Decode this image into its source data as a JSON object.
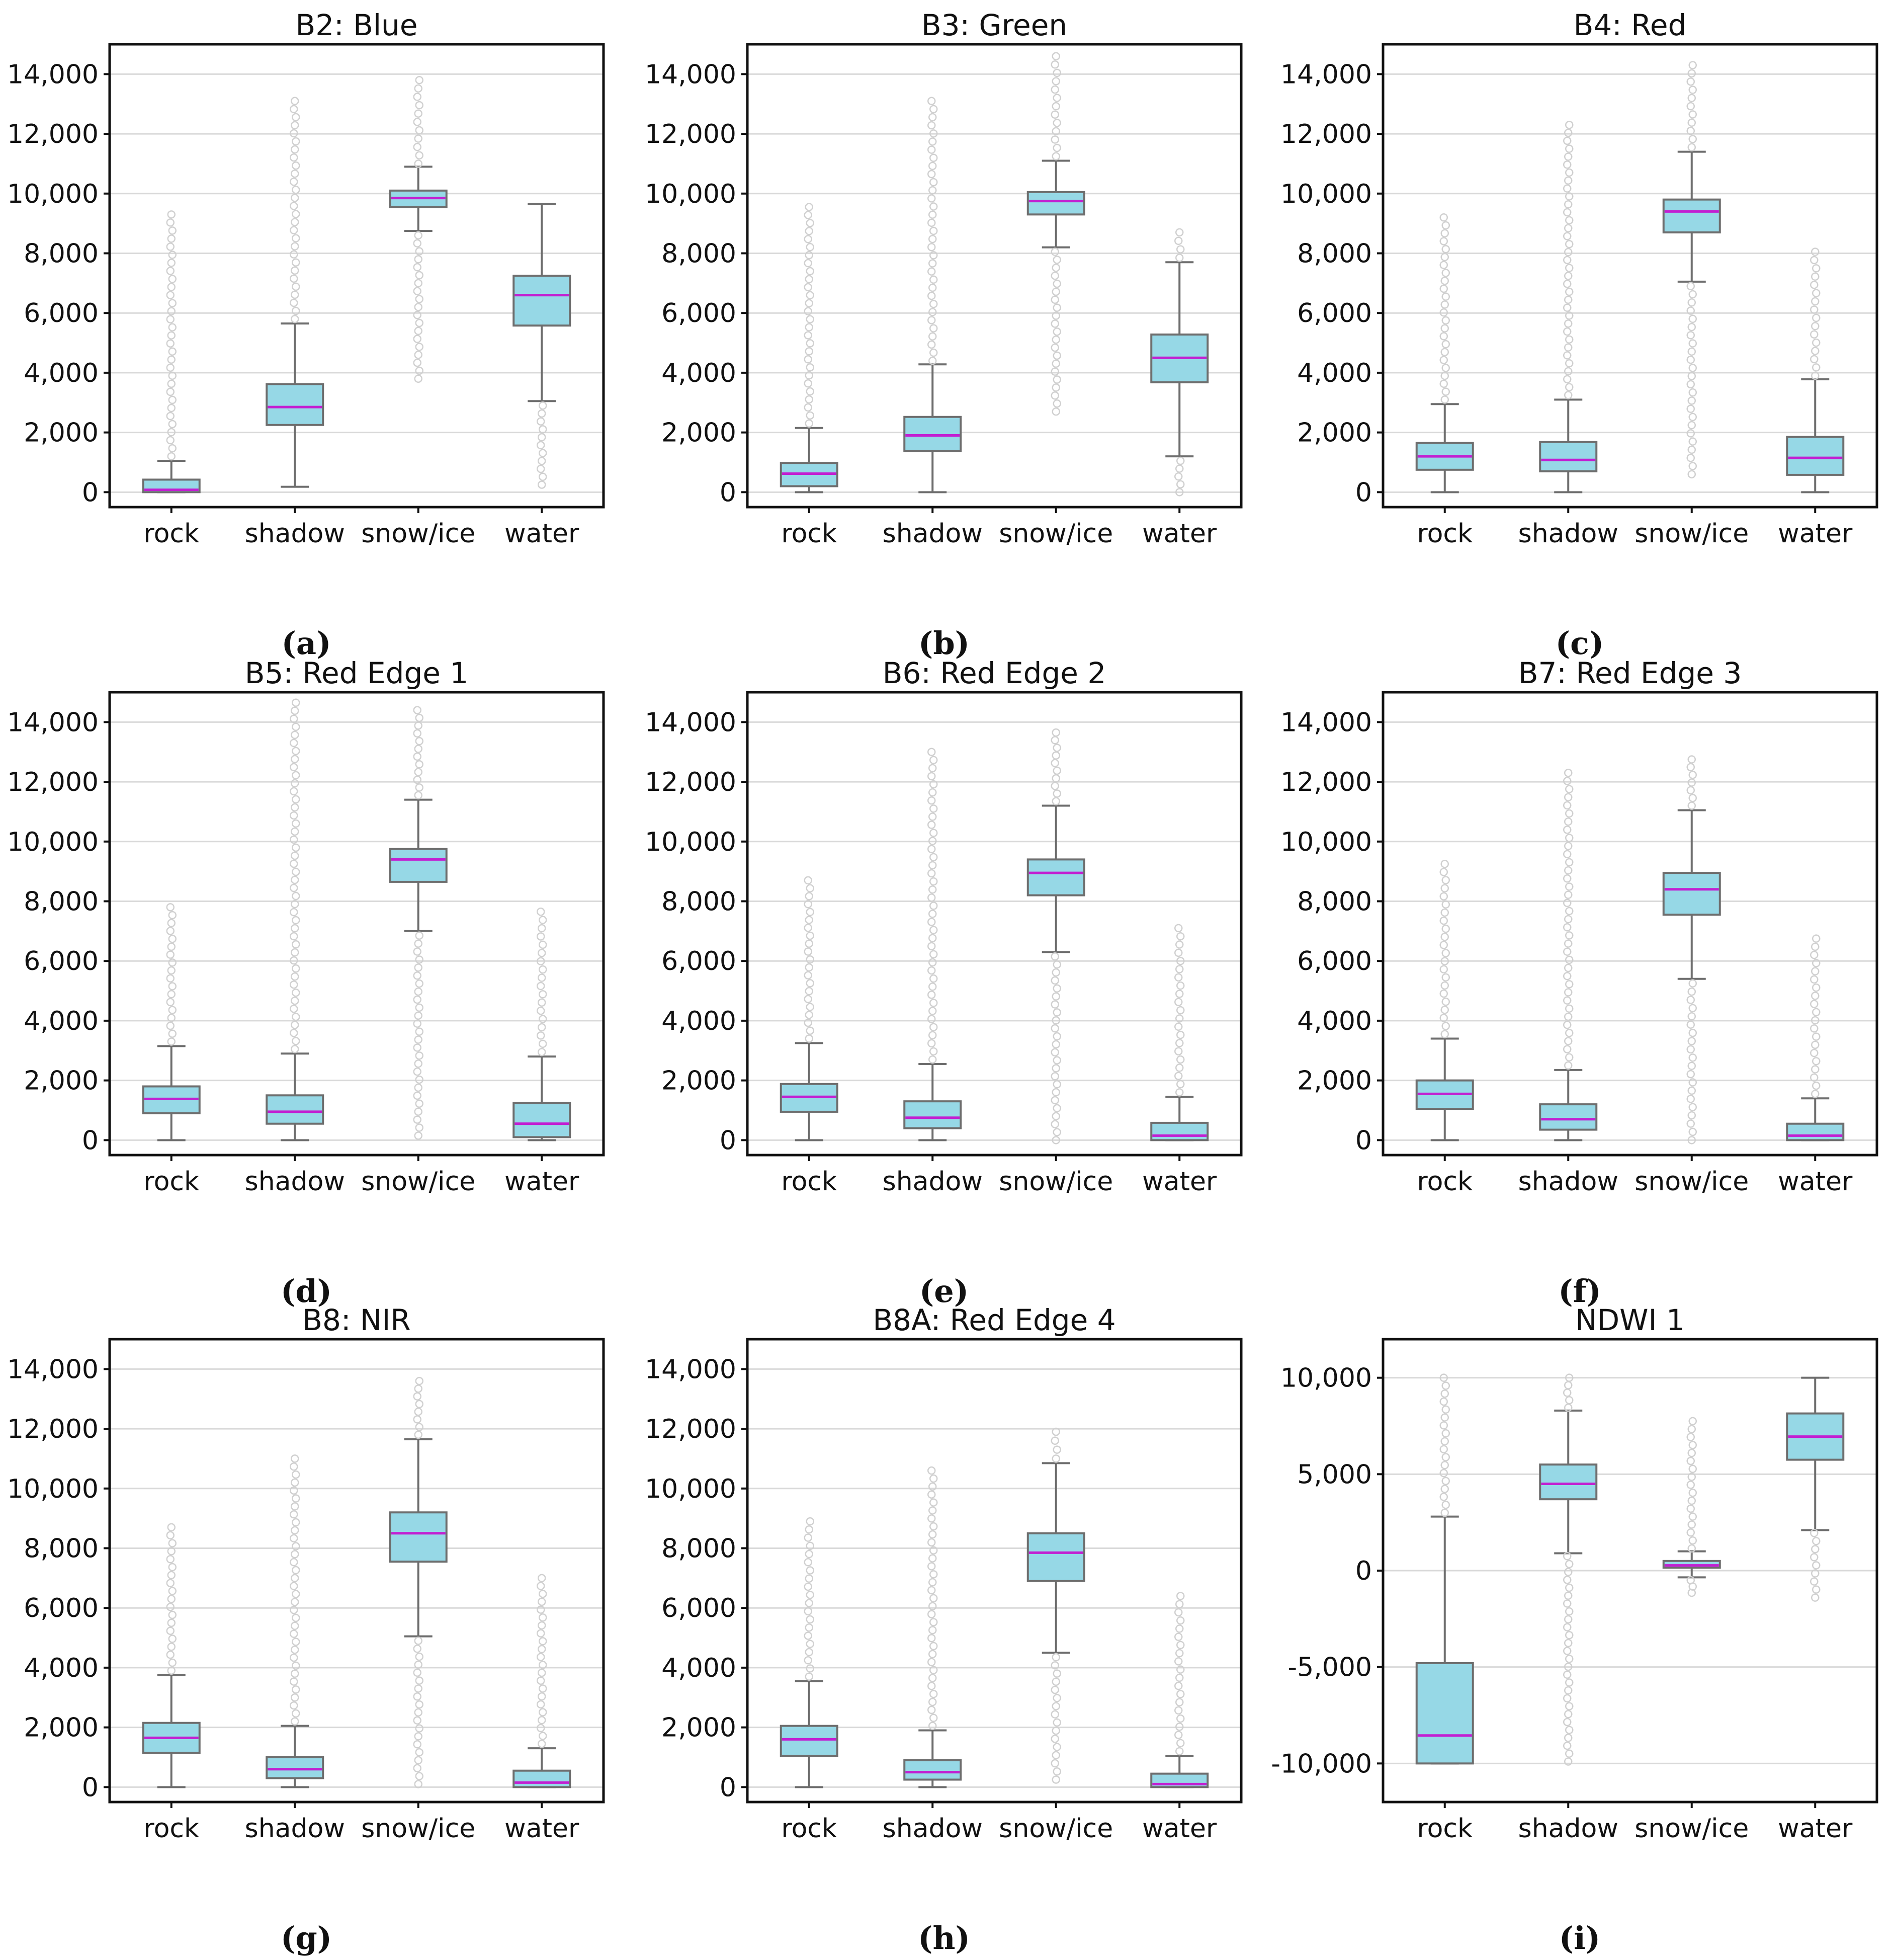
{
  "style": {
    "box_fill": "#96d8e6",
    "box_stroke": "#6e6e6e",
    "median_color": "#c21fd1",
    "grid_color": "#d9d9d9",
    "outlier_color": "#d0d0d0",
    "frame_color": "#111111"
  },
  "chart_data": [
    {
      "type": "box",
      "caption": "(a)",
      "title": "B2: Blue",
      "categories": [
        "rock",
        "shadow",
        "snow/ice",
        "water"
      ],
      "ylim": [
        -500,
        15000
      ],
      "yticks": [
        0,
        2000,
        4000,
        6000,
        8000,
        10000,
        12000,
        14000
      ],
      "yticklabels": [
        "0",
        "2,000",
        "4,000",
        "6,000",
        "8,000",
        "10,000",
        "12,000",
        "14,000"
      ],
      "boxes": [
        {
          "category": "rock",
          "whisker_low": 0,
          "q1": 0,
          "median": 80,
          "q3": 420,
          "whisker_high": 1050,
          "fliers_low": [],
          "fliers_high": [
            1200,
            9300
          ]
        },
        {
          "category": "shadow",
          "whisker_low": 180,
          "q1": 2250,
          "median": 2850,
          "q3": 3620,
          "whisker_high": 5650,
          "fliers_low": [],
          "fliers_high": [
            5800,
            13100
          ]
        },
        {
          "category": "snow/ice",
          "whisker_low": 8750,
          "q1": 9550,
          "median": 9850,
          "q3": 10100,
          "whisker_high": 10900,
          "fliers_low": [
            3800,
            8600
          ],
          "fliers_high": [
            11000,
            13800
          ]
        },
        {
          "category": "water",
          "whisker_low": 3050,
          "q1": 5580,
          "median": 6600,
          "q3": 7250,
          "whisker_high": 9650,
          "fliers_low": [
            250,
            2900
          ],
          "fliers_high": []
        }
      ]
    },
    {
      "type": "box",
      "caption": "(b)",
      "title": "B3: Green",
      "categories": [
        "rock",
        "shadow",
        "snow/ice",
        "water"
      ],
      "ylim": [
        -500,
        15000
      ],
      "yticks": [
        0,
        2000,
        4000,
        6000,
        8000,
        10000,
        12000,
        14000
      ],
      "yticklabels": [
        "0",
        "2,000",
        "4,000",
        "6,000",
        "8,000",
        "10,000",
        "12,000",
        "14,000"
      ],
      "boxes": [
        {
          "category": "rock",
          "whisker_low": 0,
          "q1": 200,
          "median": 620,
          "q3": 980,
          "whisker_high": 2150,
          "fliers_low": [],
          "fliers_high": [
            2300,
            9550
          ]
        },
        {
          "category": "shadow",
          "whisker_low": 0,
          "q1": 1380,
          "median": 1900,
          "q3": 2520,
          "whisker_high": 4280,
          "fliers_low": [],
          "fliers_high": [
            4400,
            13100
          ]
        },
        {
          "category": "snow/ice",
          "whisker_low": 8200,
          "q1": 9300,
          "median": 9750,
          "q3": 10050,
          "whisker_high": 11100,
          "fliers_low": [
            2700,
            8050
          ],
          "fliers_high": [
            11250,
            14600
          ]
        },
        {
          "category": "water",
          "whisker_low": 1200,
          "q1": 3680,
          "median": 4500,
          "q3": 5280,
          "whisker_high": 7700,
          "fliers_low": [
            0,
            1050
          ],
          "fliers_high": [
            7850,
            8700
          ]
        }
      ]
    },
    {
      "type": "box",
      "caption": "(c)",
      "title": "B4: Red",
      "categories": [
        "rock",
        "shadow",
        "snow/ice",
        "water"
      ],
      "ylim": [
        -500,
        15000
      ],
      "yticks": [
        0,
        2000,
        4000,
        6000,
        8000,
        10000,
        12000,
        14000
      ],
      "yticklabels": [
        "0",
        "2,000",
        "4,000",
        "6,000",
        "8,000",
        "10,000",
        "12,000",
        "14,000"
      ],
      "boxes": [
        {
          "category": "rock",
          "whisker_low": 0,
          "q1": 750,
          "median": 1200,
          "q3": 1650,
          "whisker_high": 2950,
          "fliers_low": [],
          "fliers_high": [
            3100,
            9200
          ]
        },
        {
          "category": "shadow",
          "whisker_low": 0,
          "q1": 700,
          "median": 1080,
          "q3": 1680,
          "whisker_high": 3100,
          "fliers_low": [],
          "fliers_high": [
            3250,
            12300
          ]
        },
        {
          "category": "snow/ice",
          "whisker_low": 7050,
          "q1": 8700,
          "median": 9400,
          "q3": 9800,
          "whisker_high": 11400,
          "fliers_low": [
            600,
            6900
          ],
          "fliers_high": [
            11550,
            14300
          ]
        },
        {
          "category": "water",
          "whisker_low": 0,
          "q1": 580,
          "median": 1150,
          "q3": 1850,
          "whisker_high": 3780,
          "fliers_low": [],
          "fliers_high": [
            3900,
            8050
          ]
        }
      ]
    },
    {
      "type": "box",
      "caption": "(d)",
      "title": "B5: Red Edge 1",
      "categories": [
        "rock",
        "shadow",
        "snow/ice",
        "water"
      ],
      "ylim": [
        -500,
        15000
      ],
      "yticks": [
        0,
        2000,
        4000,
        6000,
        8000,
        10000,
        12000,
        14000
      ],
      "yticklabels": [
        "0",
        "2,000",
        "4,000",
        "6,000",
        "8,000",
        "10,000",
        "12,000",
        "14,000"
      ],
      "boxes": [
        {
          "category": "rock",
          "whisker_low": 0,
          "q1": 900,
          "median": 1380,
          "q3": 1800,
          "whisker_high": 3150,
          "fliers_low": [],
          "fliers_high": [
            3300,
            7800
          ]
        },
        {
          "category": "shadow",
          "whisker_low": 0,
          "q1": 550,
          "median": 950,
          "q3": 1500,
          "whisker_high": 2900,
          "fliers_low": [],
          "fliers_high": [
            3050,
            14650
          ]
        },
        {
          "category": "snow/ice",
          "whisker_low": 7000,
          "q1": 8650,
          "median": 9400,
          "q3": 9750,
          "whisker_high": 11400,
          "fliers_low": [
            150,
            6850
          ],
          "fliers_high": [
            11550,
            14400
          ]
        },
        {
          "category": "water",
          "whisker_low": 0,
          "q1": 100,
          "median": 550,
          "q3": 1250,
          "whisker_high": 2800,
          "fliers_low": [],
          "fliers_high": [
            2950,
            7650
          ]
        }
      ]
    },
    {
      "type": "box",
      "caption": "(e)",
      "title": "B6: Red Edge 2",
      "categories": [
        "rock",
        "shadow",
        "snow/ice",
        "water"
      ],
      "ylim": [
        -500,
        15000
      ],
      "yticks": [
        0,
        2000,
        4000,
        6000,
        8000,
        10000,
        12000,
        14000
      ],
      "yticklabels": [
        "0",
        "2,000",
        "4,000",
        "6,000",
        "8,000",
        "10,000",
        "12,000",
        "14,000"
      ],
      "boxes": [
        {
          "category": "rock",
          "whisker_low": 0,
          "q1": 950,
          "median": 1450,
          "q3": 1880,
          "whisker_high": 3250,
          "fliers_low": [],
          "fliers_high": [
            3400,
            8700
          ]
        },
        {
          "category": "shadow",
          "whisker_low": 0,
          "q1": 400,
          "median": 750,
          "q3": 1300,
          "whisker_high": 2550,
          "fliers_low": [],
          "fliers_high": [
            2700,
            13000
          ]
        },
        {
          "category": "snow/ice",
          "whisker_low": 6300,
          "q1": 8200,
          "median": 8950,
          "q3": 9400,
          "whisker_high": 11200,
          "fliers_low": [
            0,
            6150
          ],
          "fliers_high": [
            11350,
            13650
          ]
        },
        {
          "category": "water",
          "whisker_low": 0,
          "q1": 0,
          "median": 150,
          "q3": 580,
          "whisker_high": 1450,
          "fliers_low": [],
          "fliers_high": [
            1600,
            7100
          ]
        }
      ]
    },
    {
      "type": "box",
      "caption": "(f)",
      "title": "B7: Red Edge 3",
      "categories": [
        "rock",
        "shadow",
        "snow/ice",
        "water"
      ],
      "ylim": [
        -500,
        15000
      ],
      "yticks": [
        0,
        2000,
        4000,
        6000,
        8000,
        10000,
        12000,
        14000
      ],
      "yticklabels": [
        "0",
        "2,000",
        "4,000",
        "6,000",
        "8,000",
        "10,000",
        "12,000",
        "14,000"
      ],
      "boxes": [
        {
          "category": "rock",
          "whisker_low": 0,
          "q1": 1050,
          "median": 1550,
          "q3": 2000,
          "whisker_high": 3400,
          "fliers_low": [],
          "fliers_high": [
            3550,
            9250
          ]
        },
        {
          "category": "shadow",
          "whisker_low": 0,
          "q1": 350,
          "median": 700,
          "q3": 1200,
          "whisker_high": 2350,
          "fliers_low": [],
          "fliers_high": [
            2500,
            12300
          ]
        },
        {
          "category": "snow/ice",
          "whisker_low": 5400,
          "q1": 7550,
          "median": 8400,
          "q3": 8950,
          "whisker_high": 11050,
          "fliers_low": [
            0,
            5250
          ],
          "fliers_high": [
            11200,
            12750
          ]
        },
        {
          "category": "water",
          "whisker_low": 0,
          "q1": 0,
          "median": 150,
          "q3": 550,
          "whisker_high": 1400,
          "fliers_low": [],
          "fliers_high": [
            1550,
            6750
          ]
        }
      ]
    },
    {
      "type": "box",
      "caption": "(g)",
      "title": "B8: NIR",
      "categories": [
        "rock",
        "shadow",
        "snow/ice",
        "water"
      ],
      "ylim": [
        -500,
        15000
      ],
      "yticks": [
        0,
        2000,
        4000,
        6000,
        8000,
        10000,
        12000,
        14000
      ],
      "yticklabels": [
        "0",
        "2,000",
        "4,000",
        "6,000",
        "8,000",
        "10,000",
        "12,000",
        "14,000"
      ],
      "boxes": [
        {
          "category": "rock",
          "whisker_low": 0,
          "q1": 1150,
          "median": 1650,
          "q3": 2150,
          "whisker_high": 3750,
          "fliers_low": [],
          "fliers_high": [
            3900,
            8700
          ]
        },
        {
          "category": "shadow",
          "whisker_low": 0,
          "q1": 300,
          "median": 600,
          "q3": 1000,
          "whisker_high": 2050,
          "fliers_low": [],
          "fliers_high": [
            2200,
            11000
          ]
        },
        {
          "category": "snow/ice",
          "whisker_low": 5050,
          "q1": 7550,
          "median": 8500,
          "q3": 9200,
          "whisker_high": 11650,
          "fliers_low": [
            100,
            4900
          ],
          "fliers_high": [
            11800,
            13600
          ]
        },
        {
          "category": "water",
          "whisker_low": 0,
          "q1": 0,
          "median": 150,
          "q3": 550,
          "whisker_high": 1300,
          "fliers_low": [],
          "fliers_high": [
            1450,
            7000
          ]
        }
      ]
    },
    {
      "type": "box",
      "caption": "(h)",
      "title": "B8A: Red Edge 4",
      "categories": [
        "rock",
        "shadow",
        "snow/ice",
        "water"
      ],
      "ylim": [
        -500,
        15000
      ],
      "yticks": [
        0,
        2000,
        4000,
        6000,
        8000,
        10000,
        12000,
        14000
      ],
      "yticklabels": [
        "0",
        "2,000",
        "4,000",
        "6,000",
        "8,000",
        "10,000",
        "12,000",
        "14,000"
      ],
      "boxes": [
        {
          "category": "rock",
          "whisker_low": 0,
          "q1": 1050,
          "median": 1600,
          "q3": 2050,
          "whisker_high": 3550,
          "fliers_low": [],
          "fliers_high": [
            3700,
            8900
          ]
        },
        {
          "category": "shadow",
          "whisker_low": 0,
          "q1": 250,
          "median": 500,
          "q3": 900,
          "whisker_high": 1900,
          "fliers_low": [],
          "fliers_high": [
            2050,
            10600
          ]
        },
        {
          "category": "snow/ice",
          "whisker_low": 4500,
          "q1": 6900,
          "median": 7850,
          "q3": 8500,
          "whisker_high": 10850,
          "fliers_low": [
            250,
            4350
          ],
          "fliers_high": [
            11000,
            11900
          ]
        },
        {
          "category": "water",
          "whisker_low": 0,
          "q1": 0,
          "median": 100,
          "q3": 450,
          "whisker_high": 1050,
          "fliers_low": [],
          "fliers_high": [
            1200,
            6400
          ]
        }
      ]
    },
    {
      "type": "box",
      "caption": "(i)",
      "title": "NDWI 1",
      "categories": [
        "rock",
        "shadow",
        "snow/ice",
        "water"
      ],
      "ylim": [
        -12000,
        12000
      ],
      "yticks": [
        -10000,
        -5000,
        0,
        5000,
        10000
      ],
      "yticklabels": [
        "-10,000",
        "-5,000",
        "0",
        "5,000",
        "10,000"
      ],
      "boxes": [
        {
          "category": "rock",
          "whisker_low": -10000,
          "q1": -10000,
          "median": -8550,
          "q3": -4800,
          "whisker_high": 2800,
          "fliers_low": [],
          "fliers_high": [
            3000,
            10000
          ]
        },
        {
          "category": "shadow",
          "whisker_low": 900,
          "q1": 3700,
          "median": 4500,
          "q3": 5500,
          "whisker_high": 8300,
          "fliers_low": [
            -9900,
            750
          ],
          "fliers_high": [
            8450,
            10000
          ]
        },
        {
          "category": "snow/ice",
          "whisker_low": -350,
          "q1": 150,
          "median": 270,
          "q3": 500,
          "whisker_high": 1000,
          "fliers_low": [
            -1150,
            -500
          ],
          "fliers_high": [
            1150,
            7750
          ]
        },
        {
          "category": "water",
          "whisker_low": 2100,
          "q1": 5750,
          "median": 6950,
          "q3": 8150,
          "whisker_high": 10000,
          "fliers_low": [
            -1400,
            1950
          ],
          "fliers_high": []
        }
      ]
    }
  ]
}
